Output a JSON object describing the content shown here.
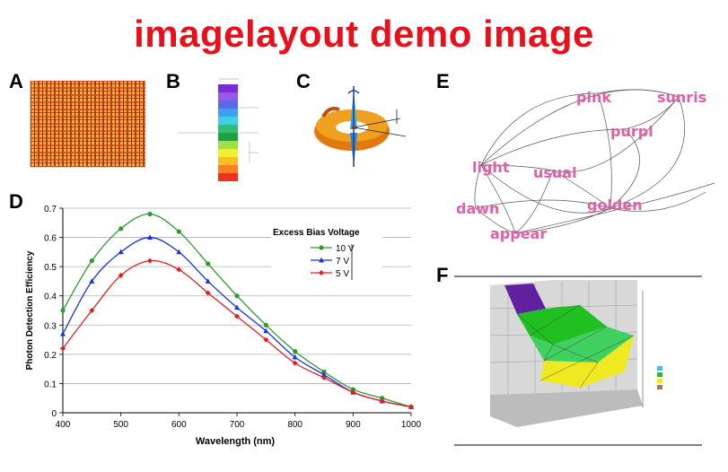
{
  "title": "imagelayout demo image",
  "panel_labels": {
    "a": "A",
    "b": "B",
    "c": "C",
    "d": "D",
    "e": "E",
    "f": "F"
  },
  "colors": {
    "title": "#e8101a",
    "word": "#e060a8",
    "s10": "#2e9a2e",
    "s7": "#1a2fe0",
    "s5": "#e02020"
  },
  "panel_e": {
    "words": [
      "pink",
      "sunris",
      "purpl",
      "light",
      "usual",
      "dawn",
      "golden",
      "appear"
    ]
  },
  "chart_data": {
    "type": "line",
    "title": "",
    "xlabel": "Wavelength (nm)",
    "ylabel": "Photon Detection Efficiency",
    "xlim": [
      400,
      1000
    ],
    "ylim": [
      0,
      0.7
    ],
    "xticks": [
      400,
      500,
      600,
      700,
      800,
      900,
      1000
    ],
    "yticks": [
      "0",
      "0.1",
      "0.2",
      "0.3",
      "0.4",
      "0.5",
      "0.6",
      "0.7"
    ],
    "grid": "horizontal",
    "legend_title": "Excess Bias Voltage",
    "legend_position": "top-right",
    "x": [
      400,
      450,
      500,
      550,
      600,
      650,
      700,
      750,
      800,
      850,
      900,
      950,
      1000
    ],
    "series": [
      {
        "name": "10 V",
        "color": "#2e9a2e",
        "marker": "circle",
        "values": [
          0.35,
          0.52,
          0.63,
          0.68,
          0.62,
          0.51,
          0.4,
          0.3,
          0.21,
          0.14,
          0.08,
          0.05,
          0.02
        ]
      },
      {
        "name": "7 V",
        "color": "#1a2fe0",
        "marker": "triangle",
        "values": [
          0.27,
          0.45,
          0.55,
          0.6,
          0.55,
          0.45,
          0.36,
          0.28,
          0.19,
          0.13,
          0.07,
          0.04,
          0.02
        ]
      },
      {
        "name": "5 V",
        "color": "#e02020",
        "marker": "diamond",
        "values": [
          0.22,
          0.35,
          0.47,
          0.52,
          0.49,
          0.41,
          0.33,
          0.25,
          0.17,
          0.12,
          0.07,
          0.04,
          0.02
        ]
      }
    ]
  }
}
